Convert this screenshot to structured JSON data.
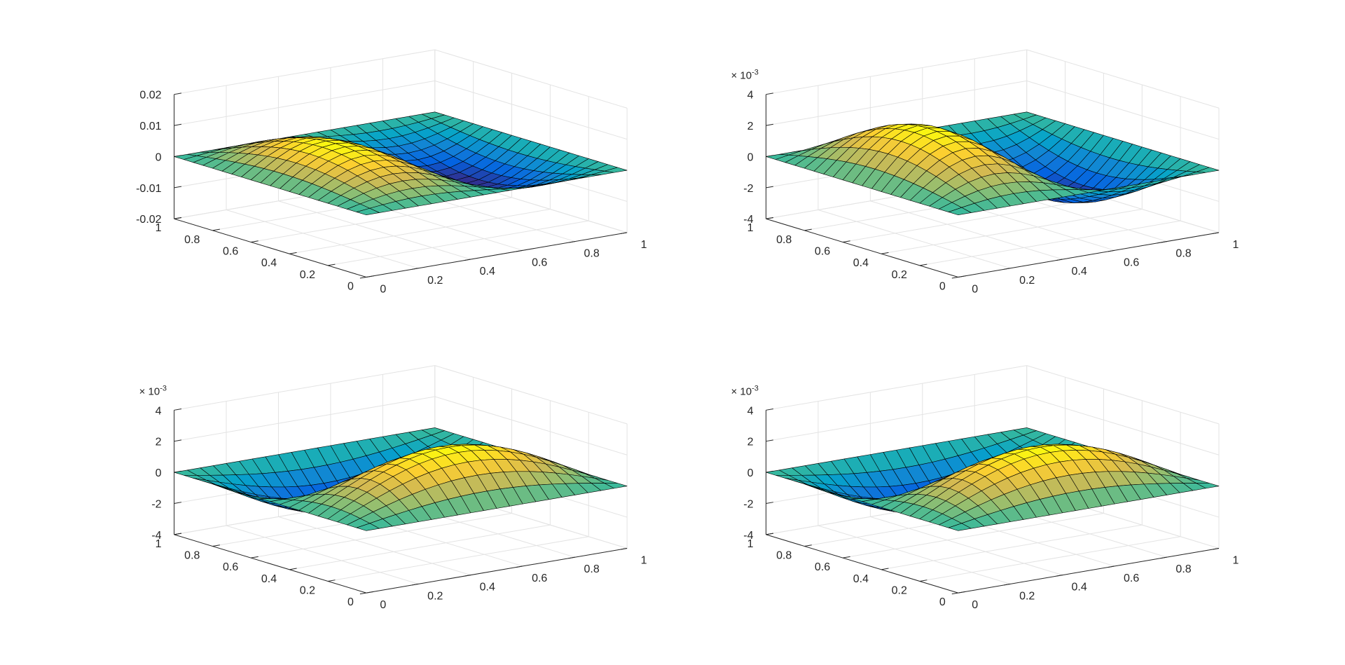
{
  "chart_data": [
    {
      "type": "surface",
      "function": "sin(2*pi*x)*sin(pi*y)",
      "amplitude": 0.01,
      "grid_points": 21,
      "xlim": [
        0,
        1
      ],
      "ylim": [
        0,
        1
      ],
      "zlim": [
        -0.02,
        0.02
      ],
      "x_ticks": [
        "0",
        "0.2",
        "0.4",
        "0.6",
        "0.8",
        "1"
      ],
      "y_ticks": [
        "0",
        "0.2",
        "0.4",
        "0.6",
        "0.8",
        "1"
      ],
      "z_ticks": [
        "-0.02",
        "-0.01",
        "0",
        "0.01",
        "0.02"
      ],
      "z_exponent": "",
      "grid": true,
      "colormap": "parula"
    },
    {
      "type": "surface",
      "function": "sin(2*pi*x)*sin(pi*y)",
      "amplitude": 0.003,
      "grid_points": 21,
      "xlim": [
        0,
        1
      ],
      "ylim": [
        0,
        1
      ],
      "zlim": [
        -0.004,
        0.004
      ],
      "x_ticks": [
        "0",
        "0.2",
        "0.4",
        "0.6",
        "0.8",
        "1"
      ],
      "y_ticks": [
        "0",
        "0.2",
        "0.4",
        "0.6",
        "0.8",
        "1"
      ],
      "z_ticks": [
        "-4",
        "-2",
        "0",
        "2",
        "4"
      ],
      "z_exponent": "-3",
      "grid": true,
      "colormap": "parula"
    },
    {
      "type": "surface",
      "function": "sin(2*pi*y)*sin(pi*x)",
      "amplitude": 0.003,
      "grid_points": 21,
      "xlim": [
        0,
        1
      ],
      "ylim": [
        0,
        1
      ],
      "zlim": [
        -0.004,
        0.004
      ],
      "x_ticks": [
        "0",
        "0.2",
        "0.4",
        "0.6",
        "0.8",
        "1"
      ],
      "y_ticks": [
        "0",
        "0.2",
        "0.4",
        "0.6",
        "0.8",
        "1"
      ],
      "z_ticks": [
        "-4",
        "-2",
        "0",
        "2",
        "4"
      ],
      "z_exponent": "-3",
      "grid": true,
      "colormap": "parula"
    },
    {
      "type": "surface",
      "function": "sin(2*pi*y)*sin(pi*x)",
      "amplitude": 0.003,
      "grid_points": 21,
      "xlim": [
        0,
        1
      ],
      "ylim": [
        0,
        1
      ],
      "zlim": [
        -0.004,
        0.004
      ],
      "x_ticks": [
        "0",
        "0.2",
        "0.4",
        "0.6",
        "0.8",
        "1"
      ],
      "y_ticks": [
        "0",
        "0.2",
        "0.4",
        "0.6",
        "0.8",
        "1"
      ],
      "z_ticks": [
        "-4",
        "-2",
        "0",
        "2",
        "4"
      ],
      "z_exponent": "-3",
      "grid": true,
      "colormap": "parula"
    }
  ]
}
